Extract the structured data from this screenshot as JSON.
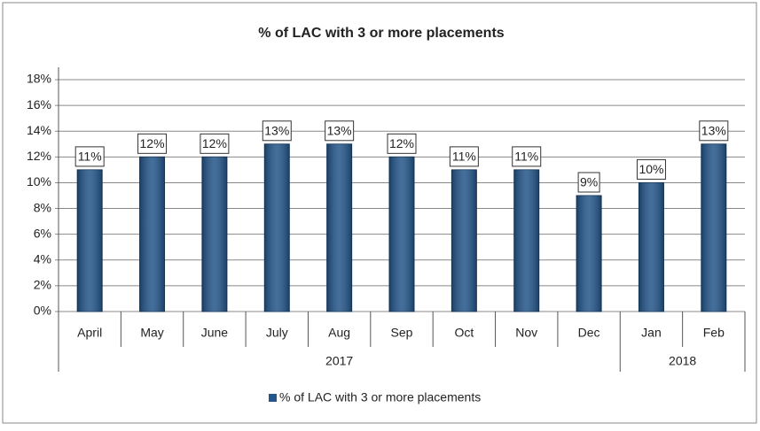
{
  "chart_data": {
    "type": "bar",
    "title": "% of LAC with 3 or more placements",
    "categories": [
      "April",
      "May",
      "June",
      "July",
      "Aug",
      "Sep",
      "Oct",
      "Nov",
      "Dec",
      "Jan",
      "Feb"
    ],
    "years": [
      "2017",
      "2017",
      "2017",
      "2017",
      "2017",
      "2017",
      "2017",
      "2017",
      "2017",
      "2018",
      "2018"
    ],
    "series": [
      {
        "name": "% of LAC with 3 or more placements",
        "color": "#24568a",
        "values": [
          11,
          12,
          12,
          13,
          13,
          12,
          11,
          11,
          9,
          10,
          13
        ],
        "value_labels": [
          "11%",
          "12%",
          "12%",
          "13%",
          "13%",
          "12%",
          "11%",
          "11%",
          "9%",
          "10%",
          "13%"
        ]
      }
    ],
    "ylim": [
      0,
      18
    ],
    "yticks": [
      {
        "value": 0,
        "label": "0%"
      },
      {
        "value": 2,
        "label": "2%"
      },
      {
        "value": 4,
        "label": "4%"
      },
      {
        "value": 6,
        "label": "6%"
      },
      {
        "value": 8,
        "label": "8%"
      },
      {
        "value": 10,
        "label": "10%"
      },
      {
        "value": 12,
        "label": "12%"
      },
      {
        "value": 14,
        "label": "14%"
      },
      {
        "value": 16,
        "label": "16%"
      },
      {
        "value": 18,
        "label": "18%"
      }
    ],
    "grid": true,
    "legend": "bottom"
  }
}
